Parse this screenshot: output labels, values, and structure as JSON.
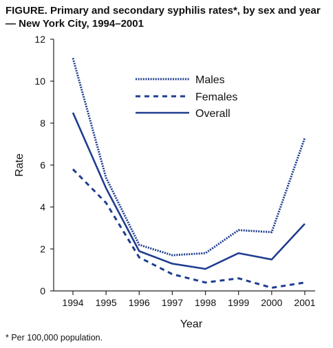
{
  "figure": {
    "title": "FIGURE. Primary and secondary syphilis rates*, by sex and year — New York City, 1994–2001",
    "footnote": "* Per 100,000 population."
  },
  "colors": {
    "series": "#1f3d8f",
    "axis": "#222222"
  },
  "chart_data": {
    "type": "line",
    "title": "FIGURE. Primary and secondary syphilis rates*, by sex and year — New York City, 1994–2001",
    "xlabel": "Year",
    "ylabel": "Rate",
    "x": [
      "1994",
      "1995",
      "1996",
      "1997",
      "1998",
      "1999",
      "2000",
      "2001"
    ],
    "ylim": [
      0,
      12
    ],
    "yticks": [
      0,
      2,
      4,
      6,
      8,
      10,
      12
    ],
    "grid": false,
    "legend": "top-right",
    "series": [
      {
        "name": "Males",
        "style": "dotted",
        "values": [
          11.1,
          5.4,
          2.2,
          1.7,
          1.8,
          2.9,
          2.8,
          7.3
        ]
      },
      {
        "name": "Females",
        "style": "dashed",
        "values": [
          5.8,
          4.2,
          1.6,
          0.8,
          0.4,
          0.6,
          0.15,
          0.4
        ]
      },
      {
        "name": "Overall",
        "style": "solid",
        "values": [
          8.5,
          4.9,
          1.9,
          1.3,
          1.05,
          1.8,
          1.5,
          3.2
        ]
      }
    ]
  }
}
